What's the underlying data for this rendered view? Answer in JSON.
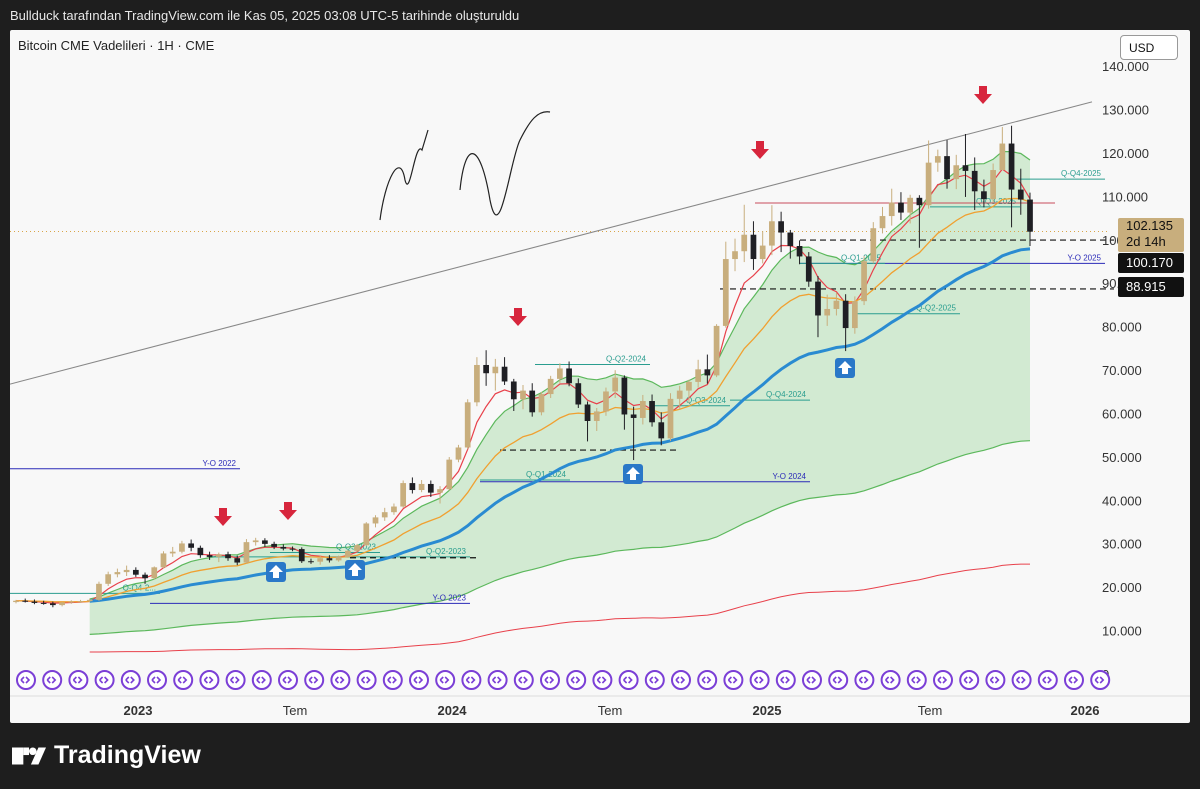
{
  "header": {
    "attribution": "Bullduck tarafından TradingView.com ile Kas 05, 2025 03:08 UTC-5 tarihinde oluşturuldu"
  },
  "chart": {
    "symbol_title": "Bitcoin CME Vadelileri · 1H · CME",
    "currency_button": "USD",
    "colors": {
      "up": "#c8ae7d",
      "down": "#1f1f24",
      "ema_red": "#e8414b",
      "ema_orange": "#f0a030",
      "sma_blue": "#2a8bd1",
      "band_green": "#5cb85c",
      "band_fill": "#c6e5c6",
      "year_level": "#2b2bb8",
      "quarter_level": "#2a9d8f"
    }
  },
  "price_labels": {
    "current_price": "102.135",
    "countdown": "2d 14h",
    "level_1": "100.170",
    "level_2": "88.915"
  },
  "level_labels": {
    "yo_2022": "Y-O 2022",
    "yo_2023": "Y-O 2023",
    "yo_2024": "Y-O 2024",
    "yo_2025": "Y-O 2025",
    "qo_q1_2023": "Q-Q1-2023",
    "qo_q4_22": "Q-Q4-2...",
    "qo_q2_2023": "Q-Q2-2023",
    "qo_q3_2023": "Q-Q3-2023",
    "qo_q1_2024": "Q-Q1-2024",
    "qo_q2_2024": "Q-Q2-2024",
    "qo_q3_2024": "Q-Q3-2024",
    "qo_q4_2024": "Q-Q4-2024",
    "qo_q1_2025": "Q-Q1-2025",
    "qo_q2_2025": "Q-Q2-2025",
    "qo_q3_2025": "Q-Q3-2025",
    "qo_q4_2025": "Q-Q4-2025"
  },
  "footer": {
    "brand": "TradingView"
  },
  "chart_data": {
    "type": "candlestick",
    "title": "Bitcoin CME Vadelileri · 1H · CME",
    "y_axis": {
      "ticks": [
        "0",
        "10.000",
        "20.000",
        "30.000",
        "40.000",
        "50.000",
        "60.000",
        "70.000",
        "80.000",
        "90.000",
        "100.000",
        "110.000",
        "120.000",
        "130.000",
        "140.000"
      ],
      "ylim": [
        0,
        143000
      ],
      "position": "right"
    },
    "x_axis": {
      "ticks": [
        "2023",
        "Tem",
        "2024",
        "Tem",
        "2025",
        "Tem",
        "2026"
      ]
    },
    "candles": [
      {
        "o": 16800,
        "h": 17300,
        "l": 16500,
        "c": 17100
      },
      {
        "o": 17100,
        "h": 17600,
        "l": 16700,
        "c": 16900
      },
      {
        "o": 16900,
        "h": 17400,
        "l": 16300,
        "c": 16600
      },
      {
        "o": 16600,
        "h": 17100,
        "l": 16200,
        "c": 16500
      },
      {
        "o": 16500,
        "h": 16900,
        "l": 15600,
        "c": 16100
      },
      {
        "o": 16100,
        "h": 16800,
        "l": 15800,
        "c": 16700
      },
      {
        "o": 16700,
        "h": 17200,
        "l": 16400,
        "c": 16900
      },
      {
        "o": 16900,
        "h": 17300,
        "l": 16600,
        "c": 17000
      },
      {
        "o": 17000,
        "h": 17600,
        "l": 16800,
        "c": 17300
      },
      {
        "o": 17300,
        "h": 21500,
        "l": 17100,
        "c": 21000
      },
      {
        "o": 21000,
        "h": 23800,
        "l": 20500,
        "c": 23200
      },
      {
        "o": 23200,
        "h": 24500,
        "l": 22500,
        "c": 23700
      },
      {
        "o": 23700,
        "h": 25200,
        "l": 22800,
        "c": 24200
      },
      {
        "o": 24200,
        "h": 24800,
        "l": 22600,
        "c": 23100
      },
      {
        "o": 23100,
        "h": 23600,
        "l": 21000,
        "c": 22300
      },
      {
        "o": 22300,
        "h": 25000,
        "l": 22000,
        "c": 24800
      },
      {
        "o": 24800,
        "h": 28500,
        "l": 24500,
        "c": 28000
      },
      {
        "o": 28000,
        "h": 29500,
        "l": 27200,
        "c": 28400
      },
      {
        "o": 28400,
        "h": 30900,
        "l": 28000,
        "c": 30300
      },
      {
        "o": 30300,
        "h": 31200,
        "l": 28500,
        "c": 29300
      },
      {
        "o": 29300,
        "h": 29800,
        "l": 27000,
        "c": 27600
      },
      {
        "o": 27600,
        "h": 28400,
        "l": 26500,
        "c": 27200
      },
      {
        "o": 27200,
        "h": 28200,
        "l": 26000,
        "c": 27800
      },
      {
        "o": 27800,
        "h": 28400,
        "l": 26300,
        "c": 26900
      },
      {
        "o": 26900,
        "h": 27500,
        "l": 25300,
        "c": 25900
      },
      {
        "o": 25900,
        "h": 31300,
        "l": 25700,
        "c": 30600
      },
      {
        "o": 30600,
        "h": 31600,
        "l": 29800,
        "c": 31000
      },
      {
        "o": 31000,
        "h": 31500,
        "l": 29500,
        "c": 30200
      },
      {
        "o": 30200,
        "h": 30700,
        "l": 29000,
        "c": 29500
      },
      {
        "o": 29500,
        "h": 30100,
        "l": 28700,
        "c": 29100
      },
      {
        "o": 29100,
        "h": 29600,
        "l": 28500,
        "c": 29000
      },
      {
        "o": 29000,
        "h": 29400,
        "l": 25800,
        "c": 26200
      },
      {
        "o": 26200,
        "h": 26800,
        "l": 25600,
        "c": 26100
      },
      {
        "o": 26100,
        "h": 27400,
        "l": 25400,
        "c": 26900
      },
      {
        "o": 26900,
        "h": 27600,
        "l": 25900,
        "c": 26400
      },
      {
        "o": 26400,
        "h": 27500,
        "l": 26100,
        "c": 27200
      },
      {
        "o": 27200,
        "h": 28800,
        "l": 27000,
        "c": 28600
      },
      {
        "o": 28600,
        "h": 30200,
        "l": 28200,
        "c": 29900
      },
      {
        "o": 29900,
        "h": 35200,
        "l": 29700,
        "c": 34900
      },
      {
        "o": 34900,
        "h": 36800,
        "l": 34000,
        "c": 36300
      },
      {
        "o": 36300,
        "h": 38500,
        "l": 35500,
        "c": 37500
      },
      {
        "o": 37500,
        "h": 39500,
        "l": 36900,
        "c": 38800
      },
      {
        "o": 38800,
        "h": 44800,
        "l": 38500,
        "c": 44200
      },
      {
        "o": 44200,
        "h": 45500,
        "l": 41800,
        "c": 42600
      },
      {
        "o": 42600,
        "h": 44900,
        "l": 42100,
        "c": 44000
      },
      {
        "o": 44000,
        "h": 44800,
        "l": 41000,
        "c": 42000
      },
      {
        "o": 42000,
        "h": 43500,
        "l": 39500,
        "c": 42800
      },
      {
        "o": 42800,
        "h": 50200,
        "l": 42500,
        "c": 49600
      },
      {
        "o": 49600,
        "h": 53000,
        "l": 49000,
        "c": 52400
      },
      {
        "o": 52400,
        "h": 63500,
        "l": 52000,
        "c": 62800
      },
      {
        "o": 62800,
        "h": 73200,
        "l": 61900,
        "c": 71400
      },
      {
        "o": 71400,
        "h": 74800,
        "l": 66600,
        "c": 69500
      },
      {
        "o": 69500,
        "h": 72800,
        "l": 65500,
        "c": 71000
      },
      {
        "o": 71000,
        "h": 73200,
        "l": 66800,
        "c": 67600
      },
      {
        "o": 67600,
        "h": 68200,
        "l": 60800,
        "c": 63500
      },
      {
        "o": 63500,
        "h": 66800,
        "l": 61200,
        "c": 65500
      },
      {
        "o": 65500,
        "h": 67200,
        "l": 59500,
        "c": 60500
      },
      {
        "o": 60500,
        "h": 65200,
        "l": 59800,
        "c": 64700
      },
      {
        "o": 64700,
        "h": 68900,
        "l": 63800,
        "c": 68200
      },
      {
        "o": 68200,
        "h": 71800,
        "l": 67300,
        "c": 70600
      },
      {
        "o": 70600,
        "h": 72200,
        "l": 66500,
        "c": 67200
      },
      {
        "o": 67200,
        "h": 68300,
        "l": 61500,
        "c": 62300
      },
      {
        "o": 62300,
        "h": 63000,
        "l": 53800,
        "c": 58500
      },
      {
        "o": 58500,
        "h": 61500,
        "l": 56200,
        "c": 60700
      },
      {
        "o": 60700,
        "h": 66200,
        "l": 59700,
        "c": 65300
      },
      {
        "o": 65300,
        "h": 70200,
        "l": 63800,
        "c": 68500
      },
      {
        "o": 68500,
        "h": 69000,
        "l": 56500,
        "c": 60000
      },
      {
        "o": 60000,
        "h": 61800,
        "l": 49500,
        "c": 59200
      },
      {
        "o": 59200,
        "h": 64500,
        "l": 57700,
        "c": 63100
      },
      {
        "o": 63100,
        "h": 64600,
        "l": 57200,
        "c": 58200
      },
      {
        "o": 58200,
        "h": 60500,
        "l": 52900,
        "c": 54500
      },
      {
        "o": 54500,
        "h": 64900,
        "l": 53900,
        "c": 63600
      },
      {
        "o": 63600,
        "h": 66600,
        "l": 61200,
        "c": 65500
      },
      {
        "o": 65500,
        "h": 68000,
        "l": 62600,
        "c": 67500
      },
      {
        "o": 67500,
        "h": 72600,
        "l": 66200,
        "c": 70400
      },
      {
        "o": 70400,
        "h": 73800,
        "l": 67100,
        "c": 69000
      },
      {
        "o": 69000,
        "h": 80800,
        "l": 68600,
        "c": 80400
      },
      {
        "o": 80400,
        "h": 99800,
        "l": 80000,
        "c": 95800
      },
      {
        "o": 95800,
        "h": 100500,
        "l": 93000,
        "c": 97600
      },
      {
        "o": 97600,
        "h": 108300,
        "l": 95100,
        "c": 101400
      },
      {
        "o": 101400,
        "h": 104500,
        "l": 93300,
        "c": 95800
      },
      {
        "o": 95800,
        "h": 102200,
        "l": 94800,
        "c": 98900
      },
      {
        "o": 98900,
        "h": 108200,
        "l": 96700,
        "c": 104500
      },
      {
        "o": 104500,
        "h": 106700,
        "l": 97400,
        "c": 101900
      },
      {
        "o": 101900,
        "h": 102500,
        "l": 95900,
        "c": 98800
      },
      {
        "o": 98800,
        "h": 100100,
        "l": 94600,
        "c": 96400
      },
      {
        "o": 96400,
        "h": 97400,
        "l": 89400,
        "c": 90600
      },
      {
        "o": 90600,
        "h": 91900,
        "l": 77800,
        "c": 82800
      },
      {
        "o": 82800,
        "h": 87600,
        "l": 80400,
        "c": 84300
      },
      {
        "o": 84300,
        "h": 88100,
        "l": 82800,
        "c": 86200
      },
      {
        "o": 86200,
        "h": 87700,
        "l": 74600,
        "c": 79900
      },
      {
        "o": 79900,
        "h": 87200,
        "l": 78600,
        "c": 86100
      },
      {
        "o": 86100,
        "h": 96500,
        "l": 85200,
        "c": 95300
      },
      {
        "o": 95300,
        "h": 104300,
        "l": 94800,
        "c": 102900
      },
      {
        "o": 102900,
        "h": 107800,
        "l": 101700,
        "c": 105700
      },
      {
        "o": 105700,
        "h": 112000,
        "l": 103500,
        "c": 108800
      },
      {
        "o": 108800,
        "h": 111200,
        "l": 104800,
        "c": 106500
      },
      {
        "o": 106500,
        "h": 110600,
        "l": 104000,
        "c": 109900
      },
      {
        "o": 109900,
        "h": 110500,
        "l": 98400,
        "c": 108200
      },
      {
        "o": 108200,
        "h": 123100,
        "l": 107400,
        "c": 118000
      },
      {
        "o": 118000,
        "h": 121000,
        "l": 115900,
        "c": 119500
      },
      {
        "o": 119500,
        "h": 123200,
        "l": 112000,
        "c": 114200
      },
      {
        "o": 114200,
        "h": 119800,
        "l": 111900,
        "c": 117400
      },
      {
        "o": 117400,
        "h": 124600,
        "l": 110100,
        "c": 116100
      },
      {
        "o": 116100,
        "h": 119200,
        "l": 107100,
        "c": 111400
      },
      {
        "o": 111400,
        "h": 114100,
        "l": 107700,
        "c": 109600
      },
      {
        "o": 109600,
        "h": 117800,
        "l": 108800,
        "c": 116300
      },
      {
        "o": 116300,
        "h": 126200,
        "l": 116800,
        "c": 122400
      },
      {
        "o": 122400,
        "h": 126500,
        "l": 103100,
        "c": 111800
      },
      {
        "o": 111800,
        "h": 116600,
        "l": 106000,
        "c": 109500
      },
      {
        "o": 109500,
        "h": 111100,
        "l": 98800,
        "c": 102100
      }
    ],
    "lines": [
      {
        "name": "Y-O 2022",
        "value": 47500
      },
      {
        "name": "Y-O 2023",
        "value": 16500
      },
      {
        "name": "Y-O 2024",
        "value": 44500
      },
      {
        "name": "Y-O 2025",
        "value": 94800
      },
      {
        "name": "Q-Q4-2025",
        "value": 114200
      },
      {
        "name": "Q-Q3-2025",
        "value": 107800
      },
      {
        "name": "Q-Q2-2025",
        "value": 83200
      },
      {
        "name": "Q-Q1-2025",
        "value": 94800
      }
    ],
    "dashed_levels": [
      100170,
      88915,
      51800,
      27000
    ],
    "current_price": 102135,
    "annotations": {
      "down_arrows": 6,
      "up_arrows": 4
    }
  }
}
